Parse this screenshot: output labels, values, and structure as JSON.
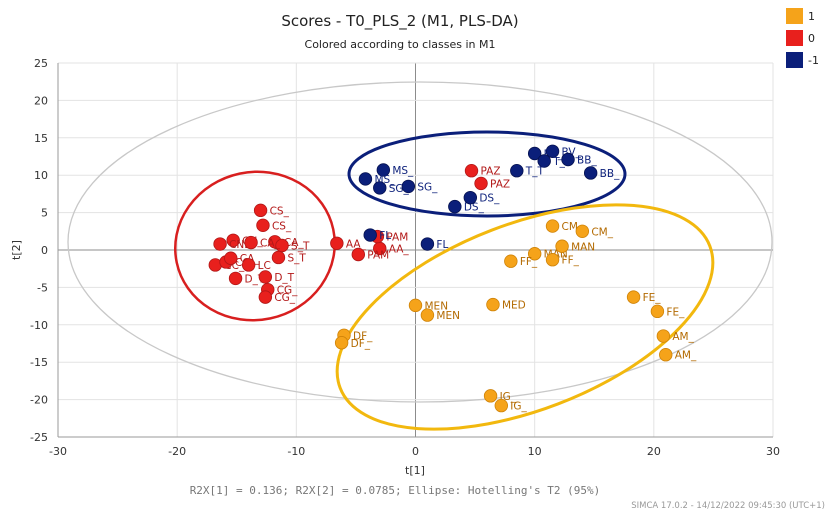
{
  "chart_data": {
    "type": "scatter",
    "title": "Scores - T0_PLS_2 (M1, PLS-DA)",
    "subtitle": "Colored according to classes in M1",
    "xlabel": "t[1]",
    "ylabel": "t[2]",
    "xlim": [
      -30,
      30
    ],
    "ylim": [
      -25,
      25
    ],
    "xticks": [
      -30,
      -20,
      -10,
      0,
      10,
      20,
      30
    ],
    "yticks": [
      -25,
      -20,
      -15,
      -10,
      -5,
      0,
      5,
      10,
      15,
      20,
      25
    ],
    "grid": true,
    "legend_position": "top-right",
    "footer": "R2X[1] = 0.136; R2X[2] = 0.0785; Ellipse: Hotelling's T2 (95%)",
    "stamp": "SIMCA 17.0.2 - 14/12/2022 09:45:30 (UTC+1)",
    "series": [
      {
        "name": "1",
        "color": "#F5A31A",
        "points": [
          {
            "label": "CM_",
            "x": 11.5,
            "y": 3.2
          },
          {
            "label": "CM_",
            "x": 14.0,
            "y": 2.5
          },
          {
            "label": "MAN",
            "x": 10.0,
            "y": -0.5
          },
          {
            "label": "MAN",
            "x": 12.3,
            "y": 0.5
          },
          {
            "label": "FF_",
            "x": 8.0,
            "y": -1.5
          },
          {
            "label": "FF_",
            "x": 11.5,
            "y": -1.3
          },
          {
            "label": "FE_",
            "x": 18.3,
            "y": -6.3
          },
          {
            "label": "FE_",
            "x": 20.3,
            "y": -8.2
          },
          {
            "label": "AM_",
            "x": 20.8,
            "y": -11.5
          },
          {
            "label": "AM_",
            "x": 21.0,
            "y": -14.0
          },
          {
            "label": "MEN",
            "x": 0.0,
            "y": -7.4
          },
          {
            "label": "MEN",
            "x": 1.0,
            "y": -8.7
          },
          {
            "label": "MED",
            "x": 6.5,
            "y": -7.3
          },
          {
            "label": "DF_",
            "x": -6.0,
            "y": -11.4
          },
          {
            "label": "DF_",
            "x": -6.2,
            "y": -12.4
          },
          {
            "label": "IG_",
            "x": 6.3,
            "y": -19.5
          },
          {
            "label": "IG_",
            "x": 7.2,
            "y": -20.8
          }
        ]
      },
      {
        "name": "0",
        "color": "#E8201D",
        "points": [
          {
            "label": "CS_",
            "x": -13.0,
            "y": 5.3
          },
          {
            "label": "CS_",
            "x": -12.8,
            "y": 3.3
          },
          {
            "label": "CN_",
            "x": -15.3,
            "y": 1.3
          },
          {
            "label": "CA_",
            "x": -11.8,
            "y": 1.1
          },
          {
            "label": "CNL",
            "x": -16.4,
            "y": 0.8
          },
          {
            "label": "S_T",
            "x": -11.2,
            "y": 0.6
          },
          {
            "label": "CA_",
            "x": -13.8,
            "y": 1.0
          },
          {
            "label": "S_T",
            "x": -11.5,
            "y": -1.0
          },
          {
            "label": "CC_",
            "x": -16.8,
            "y": -2.0
          },
          {
            "label": "CG",
            "x": -15.9,
            "y": -1.6
          },
          {
            "label": "CA_",
            "x": -15.5,
            "y": -1.1
          },
          {
            "label": "LC",
            "x": -14.0,
            "y": -2.0
          },
          {
            "label": "D_T",
            "x": -15.1,
            "y": -3.8
          },
          {
            "label": "D_T",
            "x": -12.6,
            "y": -3.6
          },
          {
            "label": "CG_",
            "x": -12.4,
            "y": -5.3
          },
          {
            "label": "CG_",
            "x": -12.6,
            "y": -6.3
          },
          {
            "label": "AA_",
            "x": -6.6,
            "y": 0.9
          },
          {
            "label": "AA_",
            "x": -3.0,
            "y": 0.2
          },
          {
            "label": "PAM",
            "x": -3.2,
            "y": 1.8
          },
          {
            "label": "PAM",
            "x": -4.8,
            "y": -0.6
          },
          {
            "label": "PAZ",
            "x": 4.7,
            "y": 10.6
          },
          {
            "label": "PAZ",
            "x": 5.5,
            "y": 8.9
          }
        ]
      },
      {
        "name": "-1",
        "color": "#0B1F7A",
        "points": [
          {
            "label": "BV_",
            "x": 11.5,
            "y": 13.2
          },
          {
            "label": "BV_",
            "x": 10.0,
            "y": 12.9
          },
          {
            "label": "T_T",
            "x": 10.8,
            "y": 11.9
          },
          {
            "label": "T_T",
            "x": 8.5,
            "y": 10.6
          },
          {
            "label": "BB_",
            "x": 12.8,
            "y": 12.1
          },
          {
            "label": "BB_",
            "x": 14.7,
            "y": 10.3
          },
          {
            "label": "MS_",
            "x": -2.7,
            "y": 10.7
          },
          {
            "label": "MS_",
            "x": -4.2,
            "y": 9.5
          },
          {
            "label": "SG_",
            "x": -3.0,
            "y": 8.3
          },
          {
            "label": "SG_",
            "x": -0.6,
            "y": 8.5
          },
          {
            "label": "DS_",
            "x": 3.3,
            "y": 5.8
          },
          {
            "label": "DS_",
            "x": 4.6,
            "y": 7.0
          },
          {
            "label": "FL",
            "x": -3.8,
            "y": 2.0
          },
          {
            "label": "FL",
            "x": 1.0,
            "y": 0.8
          }
        ]
      }
    ]
  }
}
